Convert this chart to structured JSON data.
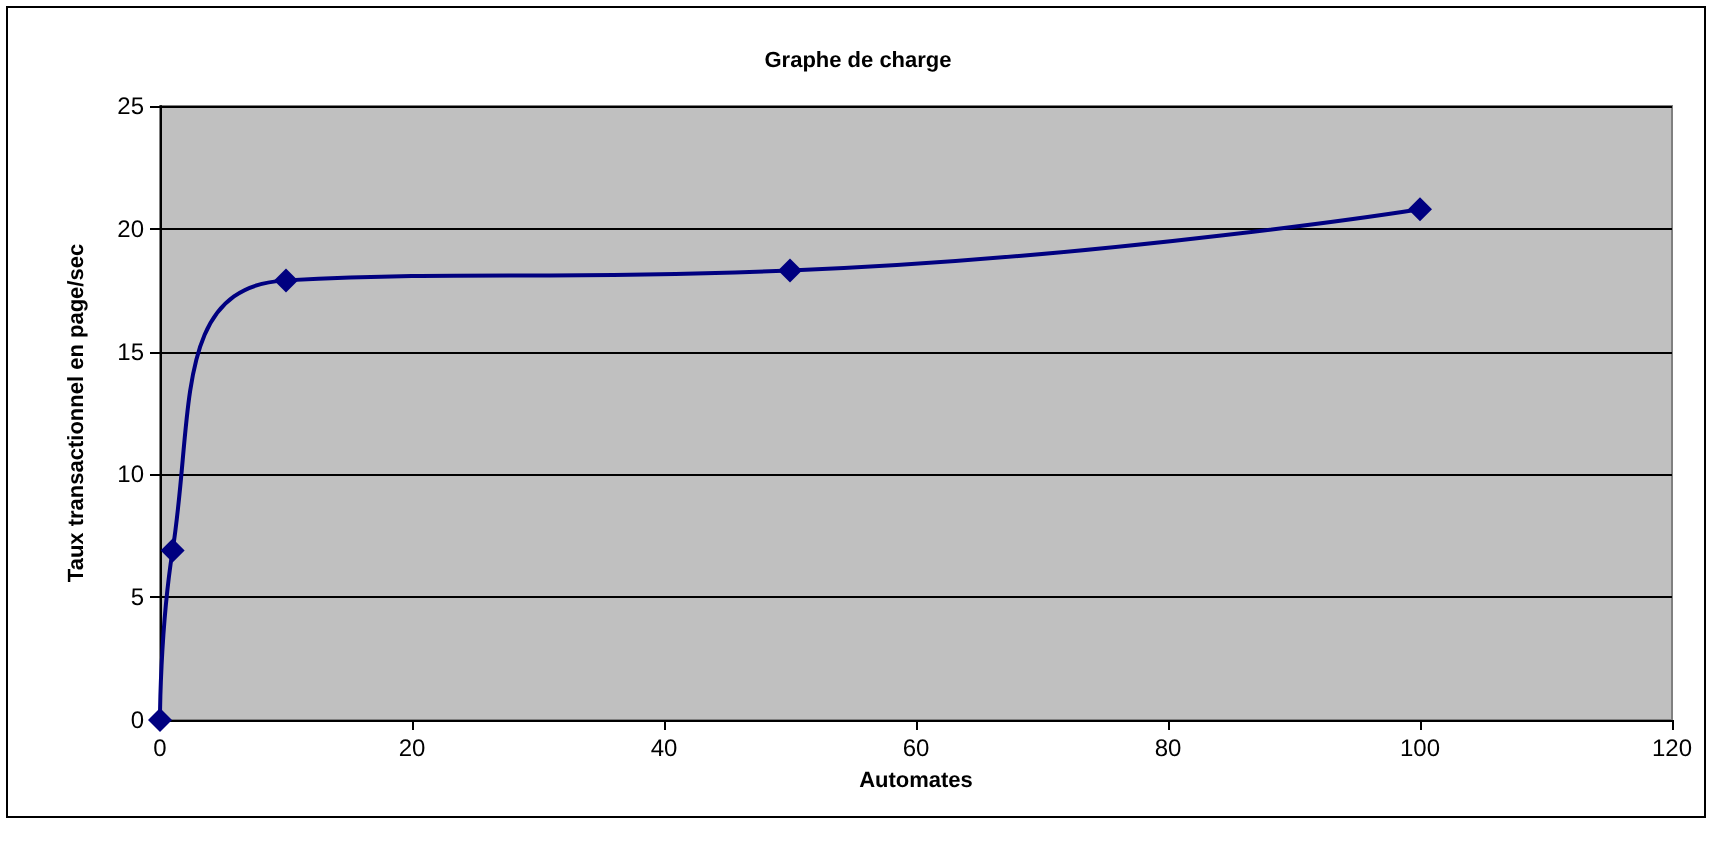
{
  "chart_data": {
    "type": "line",
    "title": "Graphe de charge",
    "xlabel": "Automates",
    "ylabel": "Taux transactionnel en page/sec",
    "x": [
      0,
      1,
      10,
      50,
      100
    ],
    "series": [
      {
        "color": "#000080",
        "values": [
          0,
          6.9,
          17.9,
          18.3,
          20.8
        ]
      }
    ],
    "xlim": [
      0,
      120
    ],
    "xticks": [
      0,
      20,
      40,
      60,
      80,
      100,
      120
    ],
    "ylim": [
      0,
      25
    ],
    "yticks": [
      0,
      5,
      10,
      15,
      20,
      25
    ],
    "grid": "y",
    "marker": "diamond",
    "line_style": "solid"
  }
}
